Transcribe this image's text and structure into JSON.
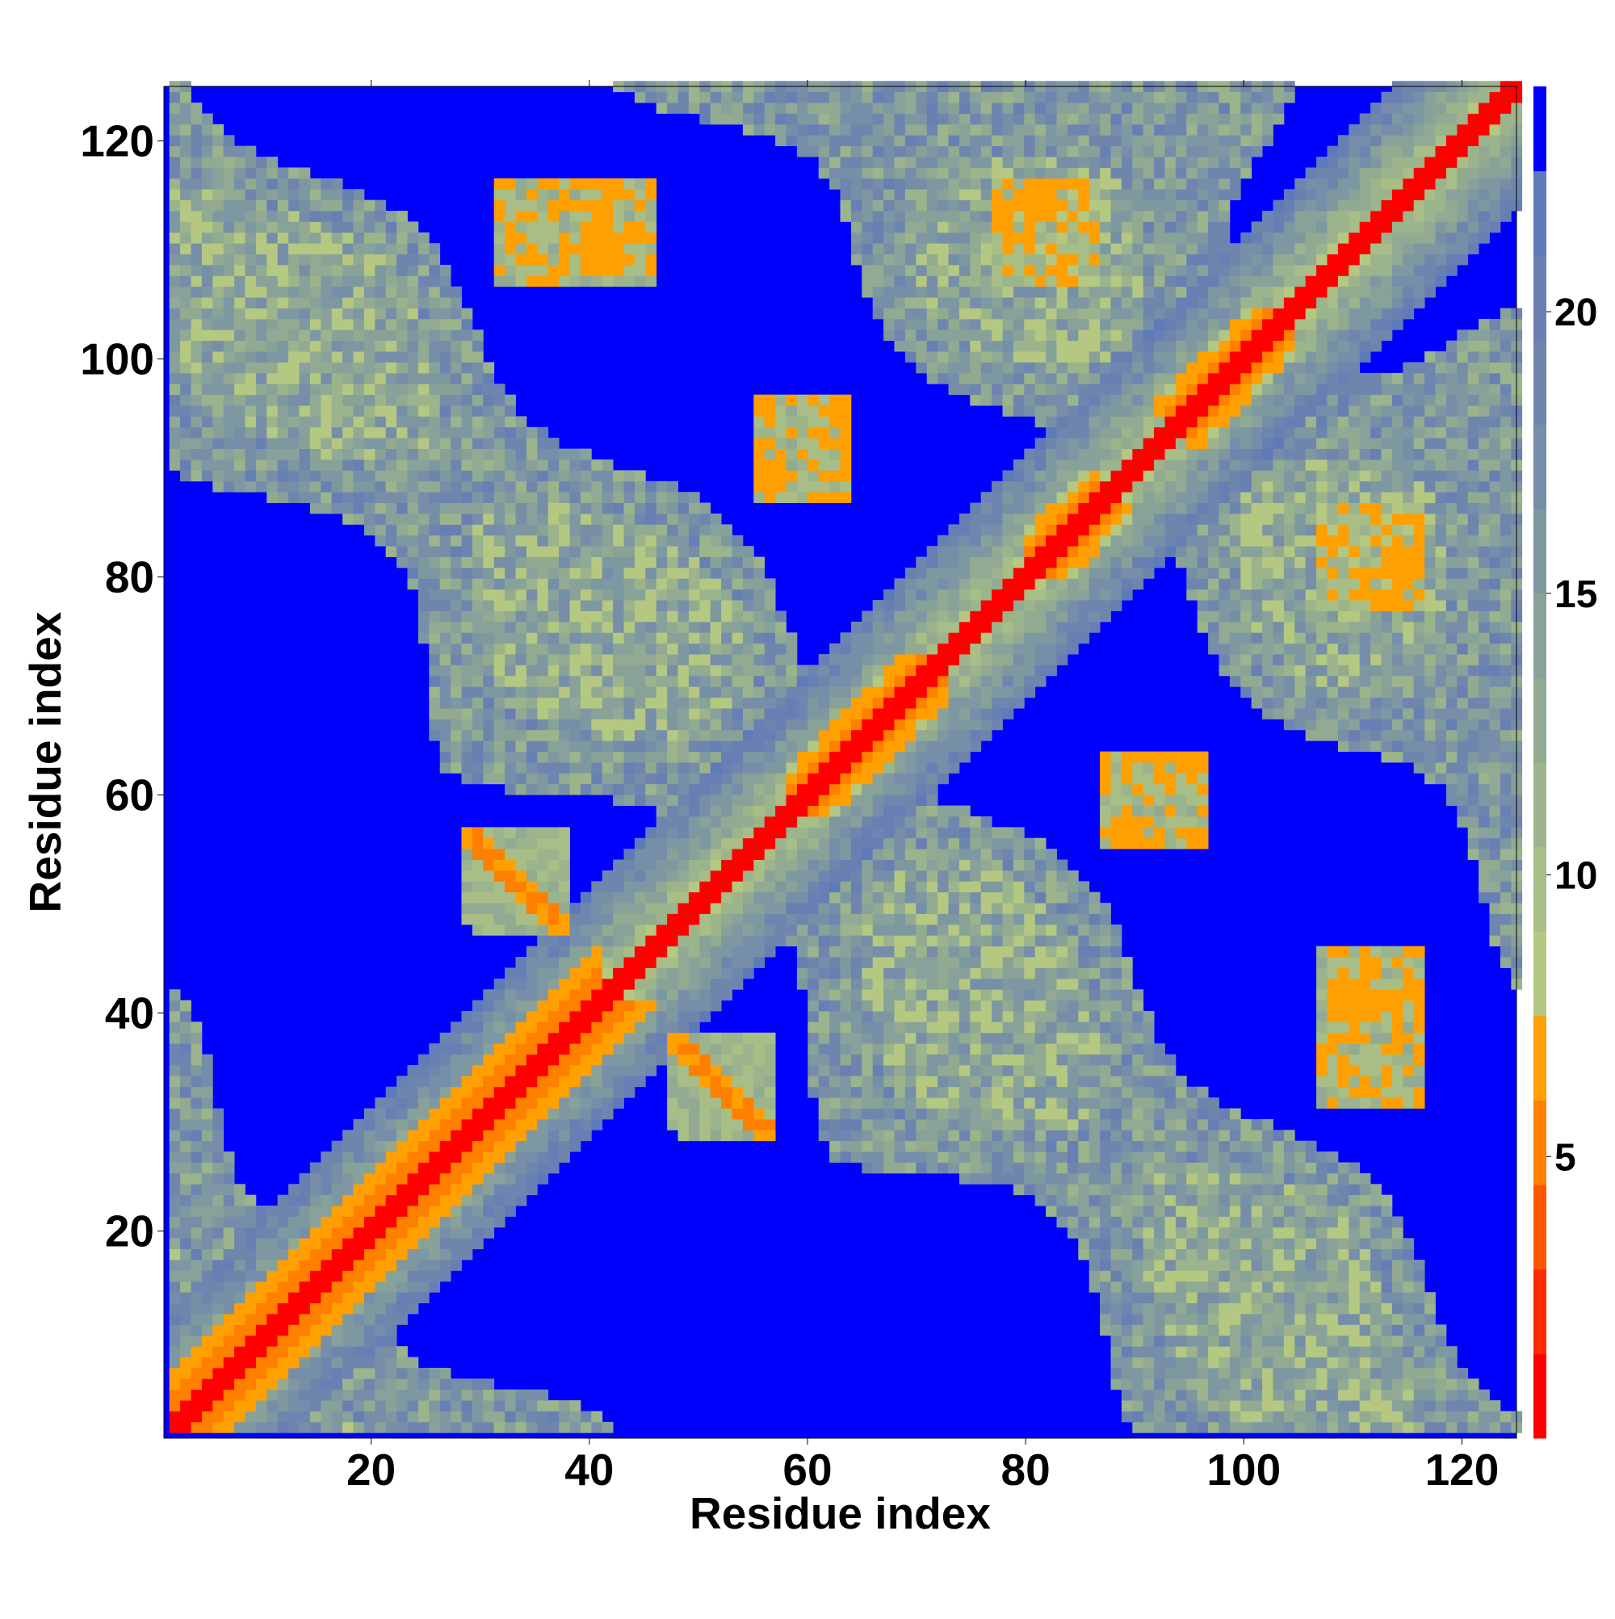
{
  "chart_data": {
    "type": "heatmap",
    "title": "",
    "xlabel": "Residue index",
    "ylabel": "Residue index",
    "n_residues": 125,
    "xlim": [
      1,
      125
    ],
    "ylim": [
      1,
      125
    ],
    "x_ticks": [
      20,
      40,
      60,
      80,
      100,
      120
    ],
    "x_tick_labels": [
      "20",
      "40",
      "60",
      "80",
      "100",
      "120"
    ],
    "y_ticks": [
      20,
      40,
      60,
      80,
      100,
      120
    ],
    "y_tick_labels": [
      "20",
      "40",
      "60",
      "80",
      "100",
      "120"
    ],
    "colorbar": {
      "range": [
        0,
        24
      ],
      "ticks": [
        5,
        10,
        15,
        20
      ],
      "tick_labels": [
        "5",
        "10",
        "15",
        "20"
      ],
      "levels": [
        {
          "max": 1.5,
          "color": "#ff0000"
        },
        {
          "max": 3.0,
          "color": "#ff2a00"
        },
        {
          "max": 4.5,
          "color": "#ff5500"
        },
        {
          "max": 6.0,
          "color": "#ff7f00"
        },
        {
          "max": 7.5,
          "color": "#ffa000"
        },
        {
          "max": 9.0,
          "color": "#b4c882"
        },
        {
          "max": 10.5,
          "color": "#a8be86"
        },
        {
          "max": 12.0,
          "color": "#9cb48c"
        },
        {
          "max": 13.5,
          "color": "#92aa92"
        },
        {
          "max": 15.0,
          "color": "#88a29a"
        },
        {
          "max": 16.5,
          "color": "#7e98a2"
        },
        {
          "max": 18.0,
          "color": "#768ea8"
        },
        {
          "max": 19.5,
          "color": "#6e86ae"
        },
        {
          "max": 21.0,
          "color": "#687fb4"
        },
        {
          "max": 22.5,
          "color": "#5f7ab8"
        },
        {
          "max": 24.0,
          "color": "#0000ff"
        }
      ]
    },
    "background_value": 24,
    "diagonal_value": 1,
    "contact_bands": [
      {
        "x": [
          1,
          40
        ],
        "y": [
          1,
          40
        ],
        "kind": "diagonal-thick"
      },
      {
        "x": [
          28,
          37
        ],
        "y": [
          48,
          56
        ],
        "kind": "antiparallel"
      },
      {
        "x": [
          47,
          56
        ],
        "y": [
          29,
          37
        ],
        "kind": "antiparallel"
      },
      {
        "x": [
          31,
          45
        ],
        "y": [
          108,
          116
        ],
        "kind": "contact"
      },
      {
        "x": [
          107,
          116
        ],
        "y": [
          31,
          45
        ],
        "kind": "contact"
      },
      {
        "x": [
          55,
          63
        ],
        "y": [
          87,
          96
        ],
        "kind": "contact"
      },
      {
        "x": [
          87,
          96
        ],
        "y": [
          55,
          63
        ],
        "kind": "contact"
      },
      {
        "x": [
          77,
          86
        ],
        "y": [
          107,
          116
        ],
        "kind": "contact"
      },
      {
        "x": [
          107,
          116
        ],
        "y": [
          77,
          86
        ],
        "kind": "contact"
      },
      {
        "x": [
          89,
          96
        ],
        "y": [
          55,
          62
        ],
        "kind": "contact"
      },
      {
        "x": [
          92,
          104
        ],
        "y": [
          95,
          104
        ],
        "kind": "helix"
      },
      {
        "x": [
          58,
          72
        ],
        "y": [
          58,
          72
        ],
        "kind": "helix"
      },
      {
        "x": [
          80,
          86
        ],
        "y": [
          80,
          89
        ],
        "kind": "helix"
      }
    ]
  }
}
